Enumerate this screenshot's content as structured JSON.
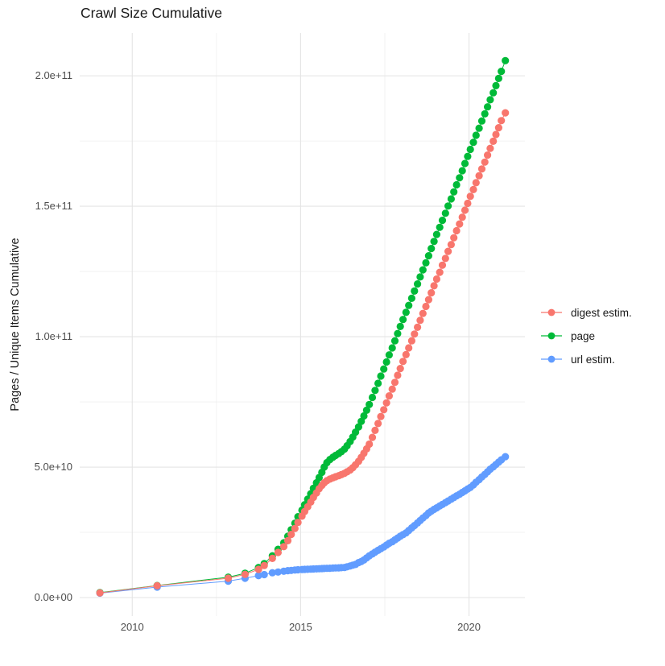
{
  "chart_data": {
    "type": "scatter",
    "title": "Crawl Size Cumulative",
    "xlabel": "",
    "ylabel": "Pages / Unique Items Cumulative",
    "value_unit": "1e9 (billions); axis labels shown in scientific notation",
    "legend_position": "right",
    "grid": "on",
    "colors": {
      "grid_major": "#e4e4e4",
      "grid_minor": "#efefef",
      "axis_text": "#4d4d4d",
      "title_text": "#1a1a1a"
    },
    "x_axis": {
      "lim": [
        2008.44,
        2021.66
      ],
      "major_ticks": [
        {
          "value": 2010,
          "label": "2010"
        },
        {
          "value": 2015,
          "label": "2015"
        },
        {
          "value": 2020,
          "label": "2020"
        }
      ],
      "minor_gridlines": [
        2012.5,
        2017.5
      ]
    },
    "y_axis": {
      "lim_e9": [
        -7.1,
        216.4
      ],
      "major_ticks": [
        {
          "value_e9": 0,
          "label": "0.0e+00"
        },
        {
          "value_e9": 50,
          "label": "5.0e+10"
        },
        {
          "value_e9": 100,
          "label": "1.0e+11"
        },
        {
          "value_e9": 150,
          "label": "1.5e+11"
        },
        {
          "value_e9": 200,
          "label": "2.0e+11"
        }
      ],
      "minor_gridlines_e9": [
        25,
        75,
        125,
        175
      ]
    },
    "draw_order": [
      1,
      2,
      0
    ],
    "series": [
      {
        "name": "digest estim.",
        "color": "#F8766D",
        "points": [
          [
            2009.04,
            1.8
          ],
          [
            2010.74,
            4.5
          ],
          [
            2012.85,
            7.4
          ],
          [
            2013.35,
            8.9
          ],
          [
            2013.75,
            10.8
          ],
          [
            2013.92,
            12.3
          ],
          [
            2014.16,
            15
          ],
          [
            2014.33,
            17.3
          ],
          [
            2014.5,
            19.5
          ],
          [
            2014.62,
            21.8
          ],
          [
            2014.72,
            24.2
          ],
          [
            2014.83,
            26.5
          ],
          [
            2014.92,
            28.8
          ],
          [
            2015.04,
            31.2
          ],
          [
            2015.12,
            33
          ],
          [
            2015.21,
            34.8
          ],
          [
            2015.3,
            36.6
          ],
          [
            2015.38,
            38.4
          ],
          [
            2015.47,
            40.1
          ],
          [
            2015.55,
            41.7
          ],
          [
            2015.63,
            43
          ],
          [
            2015.7,
            44
          ],
          [
            2015.78,
            44.8
          ],
          [
            2015.87,
            45.4
          ],
          [
            2015.96,
            45.9
          ],
          [
            2016.04,
            46.3
          ],
          [
            2016.13,
            46.7
          ],
          [
            2016.21,
            47.1
          ],
          [
            2016.3,
            47.6
          ],
          [
            2016.38,
            48.2
          ],
          [
            2016.47,
            48.9
          ],
          [
            2016.55,
            49.8
          ],
          [
            2016.63,
            50.9
          ],
          [
            2016.72,
            52.2
          ],
          [
            2016.8,
            53.7
          ],
          [
            2016.88,
            55.3
          ],
          [
            2016.96,
            57
          ],
          [
            2017.04,
            58.8
          ],
          [
            2017.13,
            61.4
          ],
          [
            2017.21,
            64.1
          ],
          [
            2017.3,
            66.7
          ],
          [
            2017.38,
            69.4
          ],
          [
            2017.47,
            72
          ],
          [
            2017.55,
            74.6
          ],
          [
            2017.63,
            77.3
          ],
          [
            2017.72,
            79.9
          ],
          [
            2017.8,
            82.5
          ],
          [
            2017.88,
            85.2
          ],
          [
            2017.96,
            87.8
          ],
          [
            2018.04,
            90.5
          ],
          [
            2018.13,
            93.1
          ],
          [
            2018.21,
            95.7
          ],
          [
            2018.3,
            98.4
          ],
          [
            2018.38,
            101
          ],
          [
            2018.47,
            103.6
          ],
          [
            2018.55,
            106.3
          ],
          [
            2018.63,
            108.9
          ],
          [
            2018.72,
            111.6
          ],
          [
            2018.8,
            114.2
          ],
          [
            2018.88,
            116.8
          ],
          [
            2018.96,
            119.5
          ],
          [
            2019.04,
            122.1
          ],
          [
            2019.13,
            124.7
          ],
          [
            2019.21,
            127.4
          ],
          [
            2019.3,
            130
          ],
          [
            2019.38,
            132.7
          ],
          [
            2019.47,
            135.3
          ],
          [
            2019.55,
            137.9
          ],
          [
            2019.63,
            140.6
          ],
          [
            2019.72,
            143.2
          ],
          [
            2019.8,
            145.8
          ],
          [
            2019.88,
            148.5
          ],
          [
            2019.96,
            151.1
          ],
          [
            2020.04,
            153.8
          ],
          [
            2020.13,
            156.4
          ],
          [
            2020.21,
            159
          ],
          [
            2020.3,
            161.7
          ],
          [
            2020.38,
            164.3
          ],
          [
            2020.47,
            166.9
          ],
          [
            2020.55,
            169.6
          ],
          [
            2020.63,
            172.2
          ],
          [
            2020.72,
            174.9
          ],
          [
            2020.8,
            177.5
          ],
          [
            2020.88,
            180.1
          ],
          [
            2020.96,
            182.8
          ],
          [
            2021.08,
            185.8
          ]
        ]
      },
      {
        "name": "page",
        "color": "#00BA38",
        "points": [
          [
            2009.04,
            1.9
          ],
          [
            2010.74,
            4.6
          ],
          [
            2012.85,
            7.8
          ],
          [
            2013.35,
            9.3
          ],
          [
            2013.75,
            11.5
          ],
          [
            2013.92,
            13
          ],
          [
            2014.16,
            16
          ],
          [
            2014.33,
            18.5
          ],
          [
            2014.5,
            21
          ],
          [
            2014.62,
            23.5
          ],
          [
            2014.72,
            26
          ],
          [
            2014.83,
            28.5
          ],
          [
            2014.92,
            31
          ],
          [
            2015.04,
            33.5
          ],
          [
            2015.12,
            35.6
          ],
          [
            2015.21,
            37.7
          ],
          [
            2015.3,
            39.8
          ],
          [
            2015.38,
            41.9
          ],
          [
            2015.47,
            44
          ],
          [
            2015.55,
            46
          ],
          [
            2015.63,
            48
          ],
          [
            2015.7,
            50
          ],
          [
            2015.78,
            51.7
          ],
          [
            2015.87,
            52.9
          ],
          [
            2015.96,
            53.8
          ],
          [
            2016.04,
            54.5
          ],
          [
            2016.13,
            55.2
          ],
          [
            2016.21,
            55.9
          ],
          [
            2016.3,
            56.9
          ],
          [
            2016.38,
            58.2
          ],
          [
            2016.47,
            59.8
          ],
          [
            2016.55,
            61.5
          ],
          [
            2016.63,
            63.4
          ],
          [
            2016.72,
            65.4
          ],
          [
            2016.8,
            67.5
          ],
          [
            2016.88,
            69.6
          ],
          [
            2016.96,
            71.8
          ],
          [
            2017.04,
            74
          ],
          [
            2017.13,
            76.7
          ],
          [
            2017.21,
            79.4
          ],
          [
            2017.3,
            82.1
          ],
          [
            2017.38,
            84.9
          ],
          [
            2017.47,
            87.6
          ],
          [
            2017.55,
            90.3
          ],
          [
            2017.63,
            93
          ],
          [
            2017.72,
            95.7
          ],
          [
            2017.8,
            98.4
          ],
          [
            2017.88,
            101.2
          ],
          [
            2017.96,
            103.9
          ],
          [
            2018.04,
            106.6
          ],
          [
            2018.13,
            109.3
          ],
          [
            2018.21,
            112
          ],
          [
            2018.3,
            114.7
          ],
          [
            2018.38,
            117.5
          ],
          [
            2018.47,
            120.2
          ],
          [
            2018.55,
            122.9
          ],
          [
            2018.63,
            125.6
          ],
          [
            2018.72,
            128.3
          ],
          [
            2018.8,
            131
          ],
          [
            2018.88,
            133.8
          ],
          [
            2018.96,
            136.5
          ],
          [
            2019.04,
            139.2
          ],
          [
            2019.13,
            141.9
          ],
          [
            2019.21,
            144.6
          ],
          [
            2019.3,
            147.3
          ],
          [
            2019.38,
            150.1
          ],
          [
            2019.47,
            152.8
          ],
          [
            2019.55,
            155.5
          ],
          [
            2019.63,
            158.2
          ],
          [
            2019.72,
            160.9
          ],
          [
            2019.8,
            163.6
          ],
          [
            2019.88,
            166.4
          ],
          [
            2019.96,
            169.1
          ],
          [
            2020.04,
            171.8
          ],
          [
            2020.13,
            174.5
          ],
          [
            2020.21,
            177.2
          ],
          [
            2020.3,
            179.9
          ],
          [
            2020.38,
            182.7
          ],
          [
            2020.47,
            185.4
          ],
          [
            2020.55,
            188.1
          ],
          [
            2020.63,
            190.8
          ],
          [
            2020.72,
            193.5
          ],
          [
            2020.8,
            196.2
          ],
          [
            2020.88,
            199
          ],
          [
            2020.96,
            201.7
          ],
          [
            2021.08,
            205.8
          ]
        ]
      },
      {
        "name": "url estim.",
        "color": "#619CFF",
        "points": [
          [
            2009.04,
            1.7
          ],
          [
            2010.74,
            4
          ],
          [
            2012.85,
            6.3
          ],
          [
            2013.35,
            7.4
          ],
          [
            2013.75,
            8.4
          ],
          [
            2013.92,
            8.8
          ],
          [
            2014.16,
            9.5
          ],
          [
            2014.33,
            9.8
          ],
          [
            2014.5,
            10.1
          ],
          [
            2014.62,
            10.3
          ],
          [
            2014.72,
            10.4
          ],
          [
            2014.83,
            10.55
          ],
          [
            2014.92,
            10.65
          ],
          [
            2015.04,
            10.75
          ],
          [
            2015.12,
            10.8
          ],
          [
            2015.21,
            10.85
          ],
          [
            2015.3,
            10.9
          ],
          [
            2015.38,
            10.95
          ],
          [
            2015.47,
            11
          ],
          [
            2015.55,
            11.05
          ],
          [
            2015.63,
            11.1
          ],
          [
            2015.7,
            11.15
          ],
          [
            2015.78,
            11.2
          ],
          [
            2015.87,
            11.25
          ],
          [
            2015.96,
            11.3
          ],
          [
            2016.04,
            11.35
          ],
          [
            2016.13,
            11.4
          ],
          [
            2016.21,
            11.45
          ],
          [
            2016.3,
            11.5
          ],
          [
            2016.38,
            11.8
          ],
          [
            2016.47,
            12.1
          ],
          [
            2016.55,
            12.4
          ],
          [
            2016.63,
            12.7
          ],
          [
            2016.72,
            13.4
          ],
          [
            2016.8,
            13.8
          ],
          [
            2016.88,
            14.4
          ],
          [
            2016.96,
            15.2
          ],
          [
            2017.04,
            16
          ],
          [
            2017.13,
            16.7
          ],
          [
            2017.21,
            17.4
          ],
          [
            2017.3,
            18.1
          ],
          [
            2017.38,
            18.7
          ],
          [
            2017.47,
            19.4
          ],
          [
            2017.55,
            20.1
          ],
          [
            2017.63,
            20.8
          ],
          [
            2017.72,
            21.4
          ],
          [
            2017.8,
            22.1
          ],
          [
            2017.88,
            22.8
          ],
          [
            2017.96,
            23.5
          ],
          [
            2018.04,
            24.1
          ],
          [
            2018.13,
            24.8
          ],
          [
            2018.21,
            25.7
          ],
          [
            2018.3,
            26.7
          ],
          [
            2018.38,
            27.6
          ],
          [
            2018.47,
            28.6
          ],
          [
            2018.55,
            29.5
          ],
          [
            2018.63,
            30.5
          ],
          [
            2018.72,
            31.4
          ],
          [
            2018.8,
            32.4
          ],
          [
            2018.88,
            33.1
          ],
          [
            2018.96,
            33.8
          ],
          [
            2019.04,
            34.4
          ],
          [
            2019.13,
            35.1
          ],
          [
            2019.21,
            35.7
          ],
          [
            2019.3,
            36.4
          ],
          [
            2019.38,
            37
          ],
          [
            2019.47,
            37.7
          ],
          [
            2019.55,
            38.3
          ],
          [
            2019.63,
            39
          ],
          [
            2019.72,
            39.6
          ],
          [
            2019.8,
            40.3
          ],
          [
            2019.88,
            40.9
          ],
          [
            2019.96,
            41.6
          ],
          [
            2020.04,
            42.2
          ],
          [
            2020.13,
            43.2
          ],
          [
            2020.21,
            44.2
          ],
          [
            2020.3,
            45.2
          ],
          [
            2020.38,
            46.2
          ],
          [
            2020.47,
            47.2
          ],
          [
            2020.55,
            48.2
          ],
          [
            2020.63,
            49.2
          ],
          [
            2020.72,
            50.1
          ],
          [
            2020.8,
            51
          ],
          [
            2020.88,
            51.9
          ],
          [
            2020.96,
            52.8
          ],
          [
            2021.08,
            54
          ]
        ]
      }
    ]
  }
}
